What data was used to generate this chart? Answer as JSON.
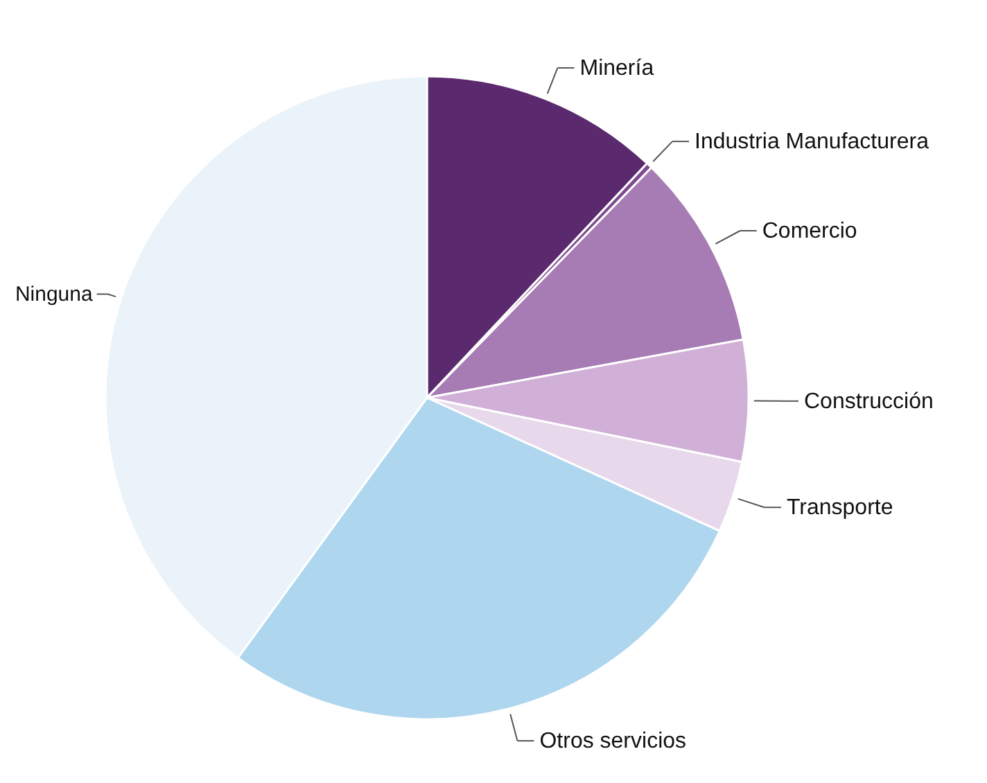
{
  "chart_data": {
    "type": "pie",
    "categories": [
      "Minería",
      "Industria Manufacturera",
      "Comercio",
      "Construcción",
      "Transporte",
      "Otros servicios",
      "Ninguna"
    ],
    "values": [
      12.0,
      0.3,
      9.8,
      6.1,
      3.6,
      28.2,
      40.0
    ],
    "colors": [
      "#5b2a6e",
      "#7d4a8e",
      "#a77bb4",
      "#d1b0d8",
      "#e8d8ec",
      "#aed6ef",
      "#eaf3f9"
    ]
  }
}
